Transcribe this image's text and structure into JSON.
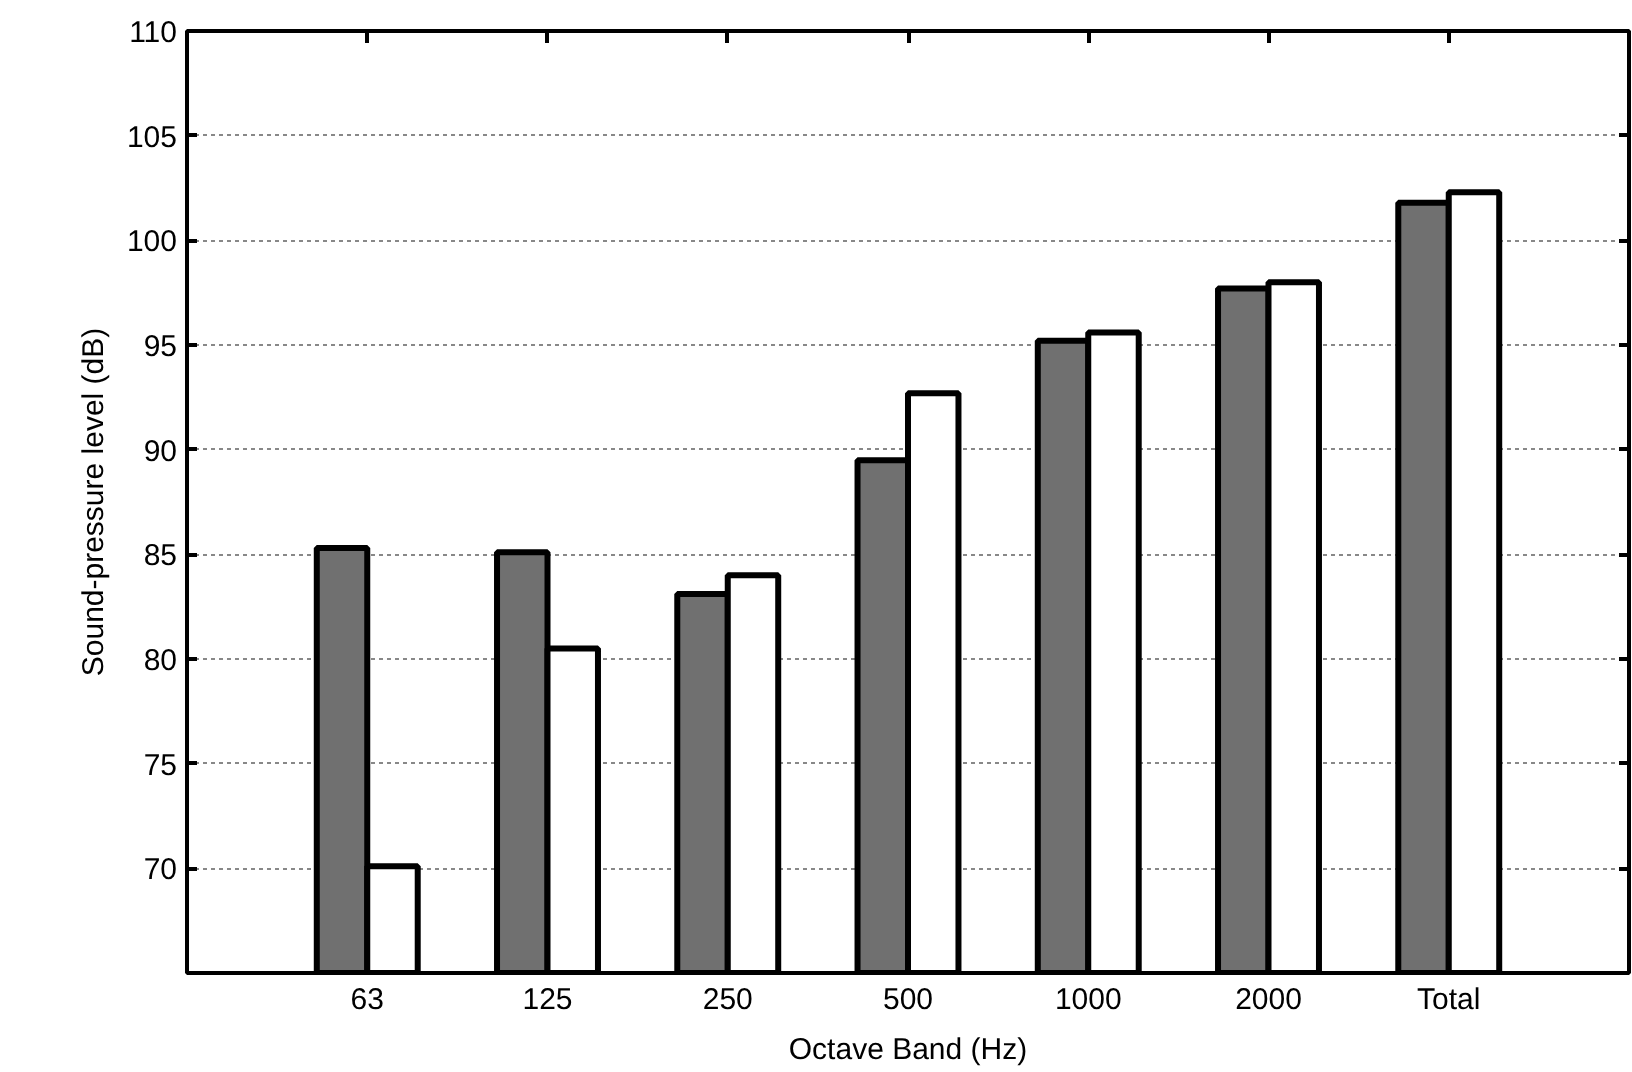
{
  "chart_data": {
    "type": "bar",
    "xlabel": "Octave Band (Hz)",
    "ylabel": "Sound-pressure level (dB)",
    "categories": [
      "63",
      "125",
      "250",
      "500",
      "1000",
      "2000",
      "Total"
    ],
    "series": [
      {
        "color": "#707070",
        "values": [
          85.3,
          85.1,
          83.1,
          89.5,
          95.2,
          97.7,
          101.8
        ]
      },
      {
        "color": "#ffffff",
        "values": [
          70.1,
          80.5,
          84.0,
          92.7,
          95.6,
          98.0,
          102.3
        ]
      }
    ],
    "ylim": [
      65,
      110
    ],
    "yticks": [
      70,
      75,
      80,
      85,
      90,
      95,
      100,
      105,
      110
    ],
    "grid": "y"
  }
}
